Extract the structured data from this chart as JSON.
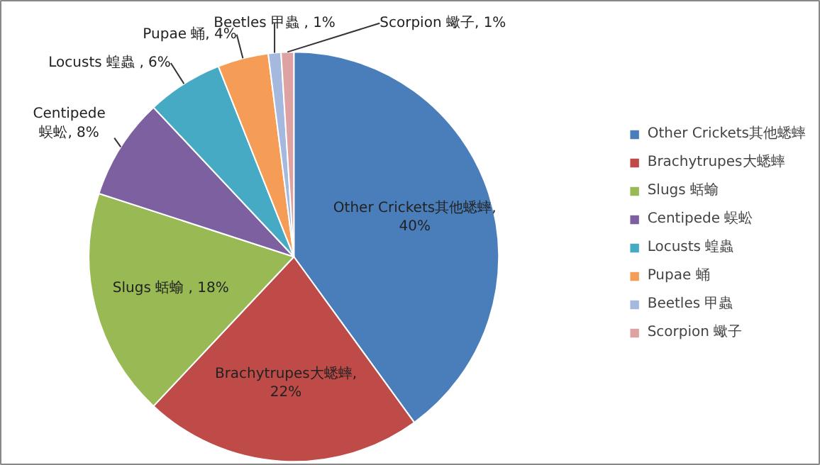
{
  "chart_data": {
    "type": "pie",
    "categories": [
      "Other Crickets其他蟋蟀",
      "Brachytrupes大蟋蟀",
      "Slugs 蛞蝓",
      "Centipede 蜈蚣",
      "Locusts 蝗蟲",
      "Pupae 蛹",
      "Beetles 甲蟲",
      "Scorpion 蠍子"
    ],
    "values": [
      40,
      22,
      18,
      8,
      6,
      4,
      1,
      1
    ],
    "colors": [
      "#4a7ebb",
      "#be4b48",
      "#98b954",
      "#7d60a0",
      "#46aac5",
      "#f59d56",
      "#a5b8de",
      "#dea2a2"
    ],
    "value_labels": [
      "Other Crickets其他蟋蟀, 40%",
      "Brachytrupes大蟋蟀, 22%",
      "Slugs 蛞蝓 , 18%",
      "Centipede 蜈蚣, 8%",
      "Locusts 蝗蟲 , 6%",
      "Pupae 蛹, 4%",
      "Beetles 甲蟲 , 1%",
      "Scorpion 蠍子, 1%"
    ],
    "legend": "right"
  }
}
